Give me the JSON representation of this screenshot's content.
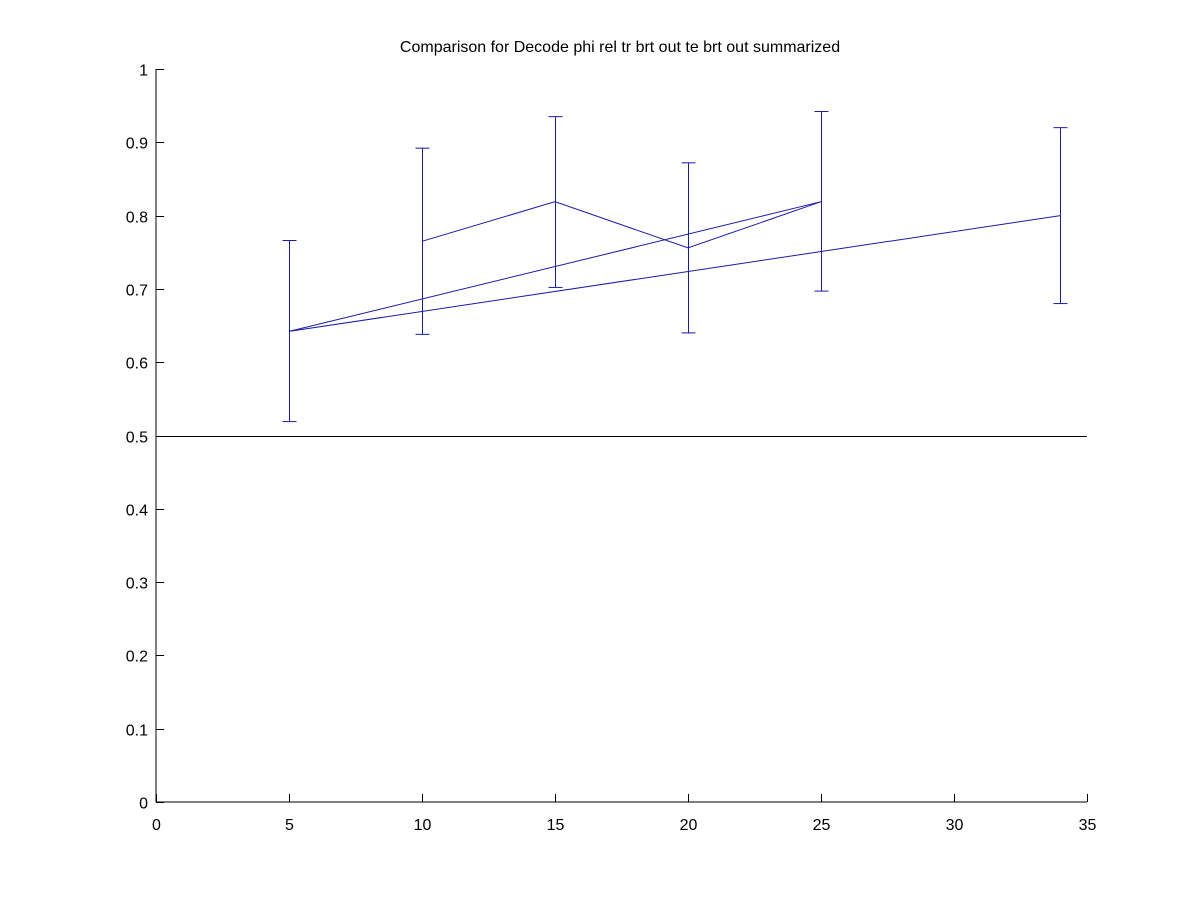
{
  "chart_data": {
    "type": "line",
    "title": "Comparison for Decode phi rel tr brt out te brt out  summarized",
    "xlabel": "",
    "ylabel": "",
    "xlim": [
      0,
      35
    ],
    "ylim": [
      0,
      1
    ],
    "xticks": [
      0,
      5,
      10,
      15,
      20,
      25,
      30,
      35
    ],
    "yticks": [
      0,
      0.1,
      0.2,
      0.3,
      0.4,
      0.5,
      0.6,
      0.7,
      0.8,
      0.9,
      1
    ],
    "xtick_labels": [
      "0",
      "5",
      "10",
      "15",
      "20",
      "25",
      "30",
      "35"
    ],
    "ytick_labels": [
      "0",
      "0.1",
      "0.2",
      "0.3",
      "0.4",
      "0.5",
      "0.6",
      "0.7",
      "0.8",
      "0.9",
      "1"
    ],
    "grid": false,
    "legend": "none",
    "line_color": "#1a1aa6",
    "axis_color": "#000000",
    "reference_line": {
      "y": 0.5,
      "color": "#000000"
    },
    "errorbars": [
      {
        "x": 5,
        "y": 0.642,
        "low": 0.519,
        "high": 0.766
      },
      {
        "x": 10,
        "y": 0.765,
        "low": 0.638,
        "high": 0.892
      },
      {
        "x": 15,
        "y": 0.819,
        "low": 0.702,
        "high": 0.935
      },
      {
        "x": 20,
        "y": 0.756,
        "low": 0.64,
        "high": 0.872
      },
      {
        "x": 25,
        "y": 0.819,
        "low": 0.697,
        "high": 0.942
      },
      {
        "x": 34,
        "y": 0.8,
        "low": 0.68,
        "high": 0.92
      }
    ],
    "series": [
      {
        "x": [
          5,
          25
        ],
        "y": [
          0.642,
          0.819
        ]
      },
      {
        "x": [
          10,
          15,
          20,
          25
        ],
        "y": [
          0.765,
          0.819,
          0.756,
          0.819
        ]
      },
      {
        "x": [
          5,
          34
        ],
        "y": [
          0.642,
          0.8
        ]
      }
    ]
  }
}
